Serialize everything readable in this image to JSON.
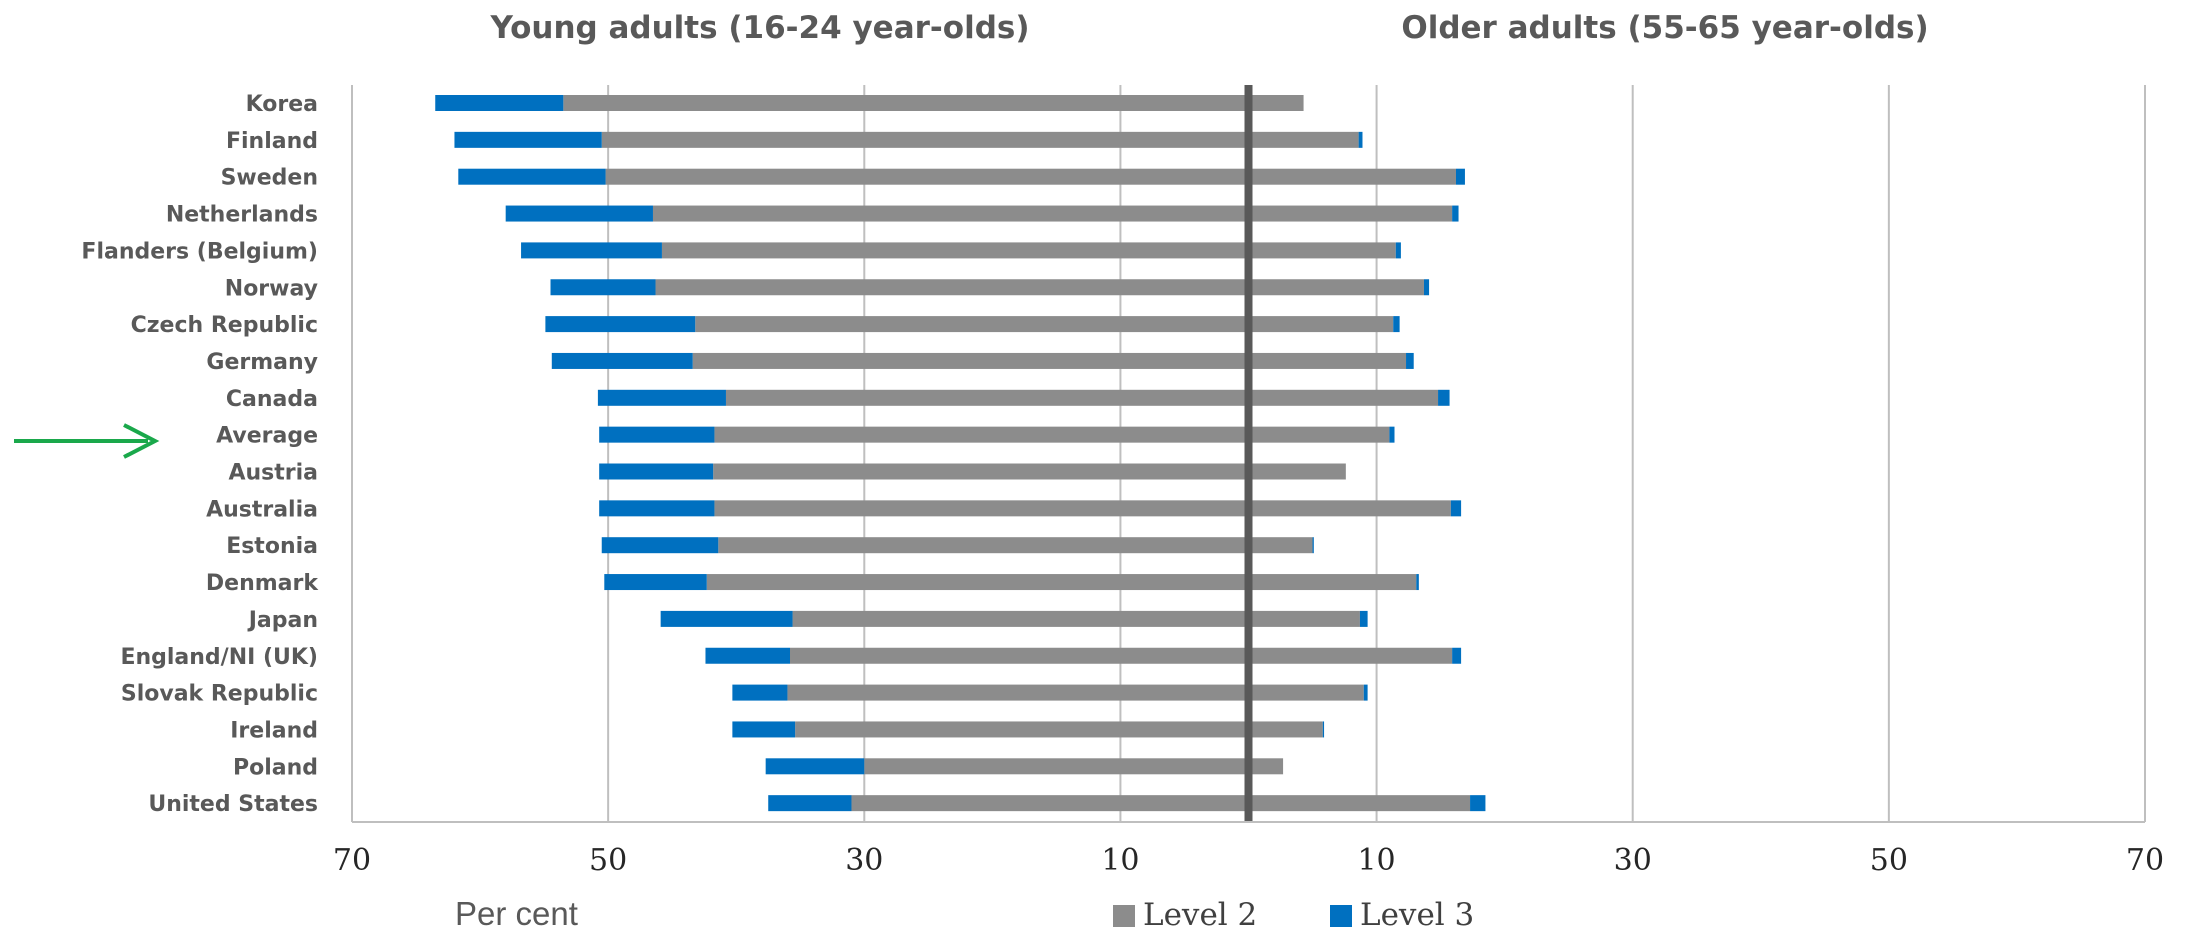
{
  "chart_data": {
    "type": "bar",
    "orientation": "horizontal",
    "stacked": true,
    "panels": {
      "left_title": "Young adults (16-24 year-olds)",
      "right_title": "Older adults (55-65 year-olds)"
    },
    "xlabel": "Per cent",
    "xlim": [
      -70,
      70
    ],
    "x_ticks": [
      -70,
      -50,
      -30,
      -10,
      10,
      30,
      50,
      70
    ],
    "x_tick_labels": [
      "70",
      "50",
      "30",
      "10",
      "10",
      "30",
      "50",
      "70"
    ],
    "grid": true,
    "legend_position": "bottom",
    "highlighted_category": "Average",
    "categories": [
      "Korea",
      "Finland",
      "Sweden",
      "Netherlands",
      "Flanders (Belgium)",
      "Norway",
      "Czech Republic",
      "Germany",
      "Canada",
      "Average",
      "Austria",
      "Australia",
      "Estonia",
      "Denmark",
      "Japan",
      "England/NI (UK)",
      "Slovak Republic",
      "Ireland",
      "Poland",
      "United States"
    ],
    "series": [
      {
        "name": "Level 2",
        "color": "#8c8c8c",
        "young": [
          53.5,
          50.5,
          50.2,
          46.5,
          45.8,
          46.3,
          43.2,
          43.4,
          40.8,
          41.7,
          41.8,
          41.7,
          41.4,
          42.3,
          35.6,
          35.8,
          36.0,
          35.4,
          30.0,
          31.0
        ],
        "older": [
          4.3,
          8.6,
          16.2,
          15.9,
          11.5,
          13.7,
          11.3,
          12.3,
          14.8,
          11.0,
          7.6,
          15.8,
          5.0,
          13.1,
          8.7,
          15.9,
          9.0,
          5.8,
          2.7,
          17.3
        ]
      },
      {
        "name": "Level 3",
        "color": "#0070c0",
        "young": [
          10.0,
          11.5,
          11.5,
          11.5,
          11.0,
          8.2,
          11.7,
          11.0,
          10.0,
          9.0,
          8.9,
          9.0,
          9.1,
          8.0,
          10.3,
          6.6,
          4.3,
          4.9,
          7.7,
          6.5
        ],
        "older": [
          0.0,
          0.3,
          0.7,
          0.5,
          0.4,
          0.4,
          0.5,
          0.6,
          0.9,
          0.4,
          0.0,
          0.8,
          0.1,
          0.2,
          0.6,
          0.7,
          0.3,
          0.1,
          0.0,
          1.2
        ]
      }
    ]
  }
}
